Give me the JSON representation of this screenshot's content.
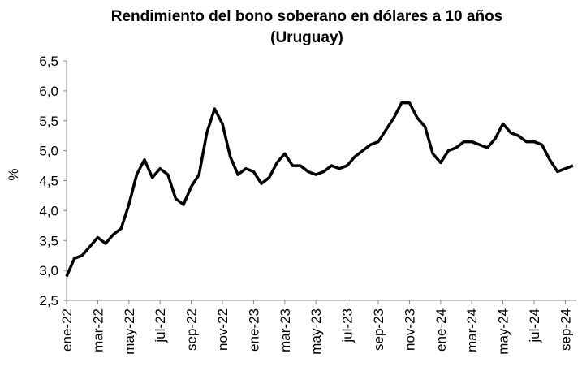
{
  "chart_data": {
    "type": "line",
    "title": [
      "Rendimiento del bono soberano en dólares a 10 años",
      "(Uruguay)"
    ],
    "y_label": "%",
    "categories": [
      "ene-22",
      null,
      null,
      null,
      "mar-22",
      null,
      null,
      null,
      "may-22",
      null,
      null,
      null,
      "jul-22",
      null,
      null,
      null,
      "sep-22",
      null,
      null,
      null,
      "nov-22",
      null,
      null,
      null,
      "ene-23",
      null,
      null,
      null,
      "mar-23",
      null,
      null,
      null,
      "may-23",
      null,
      null,
      null,
      "jul-23",
      null,
      null,
      null,
      "sep-23",
      null,
      null,
      null,
      "nov-23",
      null,
      null,
      null,
      "ene-24",
      null,
      null,
      null,
      "mar-24",
      null,
      null,
      null,
      "may-24",
      null,
      null,
      null,
      "jul-24",
      null,
      null,
      null,
      "sep-24",
      null
    ],
    "series": [
      {
        "name": "Rendimiento",
        "color": "#000000",
        "values": [
          2.9,
          3.2,
          3.25,
          3.4,
          3.55,
          3.45,
          3.6,
          3.7,
          4.1,
          4.6,
          4.85,
          4.55,
          4.7,
          4.6,
          4.2,
          4.1,
          4.4,
          4.6,
          5.3,
          5.7,
          5.45,
          4.9,
          4.6,
          4.7,
          4.65,
          4.45,
          4.55,
          4.8,
          4.95,
          4.75,
          4.75,
          4.65,
          4.6,
          4.65,
          4.75,
          4.7,
          4.75,
          4.9,
          5.0,
          5.1,
          5.15,
          5.35,
          5.55,
          5.8,
          5.8,
          5.55,
          5.4,
          4.95,
          4.8,
          5.0,
          5.05,
          5.15,
          5.15,
          5.1,
          5.05,
          5.2,
          5.45,
          5.3,
          5.25,
          5.15,
          5.15,
          5.1,
          4.85,
          4.65,
          4.7,
          4.75
        ]
      }
    ],
    "ylim": [
      2.5,
      6.5
    ],
    "yticks": [
      {
        "value": 2.5,
        "label": "2,5"
      },
      {
        "value": 3.0,
        "label": "3,0"
      },
      {
        "value": 3.5,
        "label": "3,5"
      },
      {
        "value": 4.0,
        "label": "4,0"
      },
      {
        "value": 4.5,
        "label": "4,5"
      },
      {
        "value": 5.0,
        "label": "5,0"
      },
      {
        "value": 5.5,
        "label": "5,5"
      },
      {
        "value": 6.0,
        "label": "6,0"
      },
      {
        "value": 6.5,
        "label": "6,5"
      }
    ],
    "grid": false
  }
}
